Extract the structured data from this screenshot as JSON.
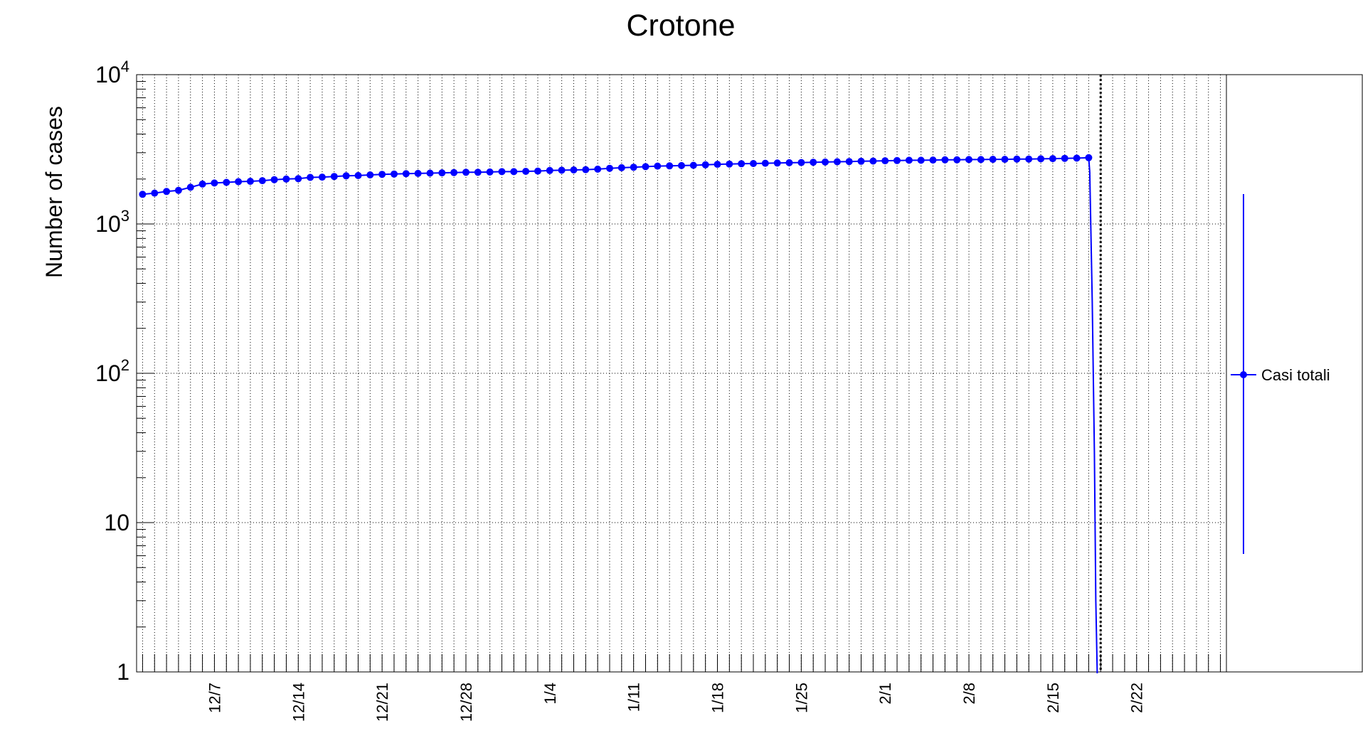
{
  "chart_data": {
    "type": "line",
    "title": "Crotone",
    "xlabel": "",
    "ylabel": "Number of cases",
    "yscale": "log",
    "ylim": [
      1,
      10000
    ],
    "y_tick_labels": [
      {
        "value": 1,
        "base": "1",
        "exp": ""
      },
      {
        "value": 10,
        "base": "10",
        "exp": ""
      },
      {
        "value": 100,
        "base": "10",
        "exp": "2"
      },
      {
        "value": 1000,
        "base": "10",
        "exp": "3"
      },
      {
        "value": 10000,
        "base": "10",
        "exp": "4"
      }
    ],
    "x_tick_labels": [
      "12/7",
      "12/14",
      "12/21",
      "12/28",
      "1/4",
      "1/11",
      "1/18",
      "1/25",
      "2/1",
      "2/8",
      "2/15",
      "2/22"
    ],
    "grid": true,
    "legend_position": "right",
    "marker_line_date": "2/19",
    "series": [
      {
        "name": "Casi totali",
        "color": "#0000ff",
        "x": [
          "12/1",
          "12/2",
          "12/3",
          "12/4",
          "12/5",
          "12/6",
          "12/7",
          "12/8",
          "12/9",
          "12/10",
          "12/11",
          "12/12",
          "12/13",
          "12/14",
          "12/15",
          "12/16",
          "12/17",
          "12/18",
          "12/19",
          "12/20",
          "12/21",
          "12/22",
          "12/23",
          "12/24",
          "12/25",
          "12/26",
          "12/27",
          "12/28",
          "12/29",
          "12/30",
          "12/31",
          "1/1",
          "1/2",
          "1/3",
          "1/4",
          "1/5",
          "1/6",
          "1/7",
          "1/8",
          "1/9",
          "1/10",
          "1/11",
          "1/12",
          "1/13",
          "1/14",
          "1/15",
          "1/16",
          "1/17",
          "1/18",
          "1/19",
          "1/20",
          "1/21",
          "1/22",
          "1/23",
          "1/24",
          "1/25",
          "1/26",
          "1/27",
          "1/28",
          "1/29",
          "1/30",
          "1/31",
          "2/1",
          "2/2",
          "2/3",
          "2/4",
          "2/5",
          "2/6",
          "2/7",
          "2/8",
          "2/9",
          "2/10",
          "2/11",
          "2/12",
          "2/13",
          "2/14",
          "2/15",
          "2/16",
          "2/17",
          "2/18"
        ],
        "values": [
          1580,
          1610,
          1650,
          1680,
          1760,
          1850,
          1880,
          1900,
          1920,
          1930,
          1950,
          1980,
          2000,
          2010,
          2050,
          2060,
          2080,
          2100,
          2110,
          2130,
          2150,
          2160,
          2170,
          2180,
          2190,
          2200,
          2210,
          2220,
          2220,
          2230,
          2240,
          2240,
          2250,
          2260,
          2280,
          2290,
          2300,
          2310,
          2330,
          2360,
          2380,
          2400,
          2420,
          2440,
          2450,
          2460,
          2470,
          2490,
          2510,
          2520,
          2530,
          2540,
          2550,
          2560,
          2570,
          2580,
          2590,
          2600,
          2610,
          2620,
          2630,
          2640,
          2650,
          2660,
          2670,
          2670,
          2680,
          2690,
          2690,
          2700,
          2700,
          2710,
          2710,
          2720,
          2720,
          2730,
          2740,
          2750,
          2760,
          2780
        ]
      }
    ]
  }
}
